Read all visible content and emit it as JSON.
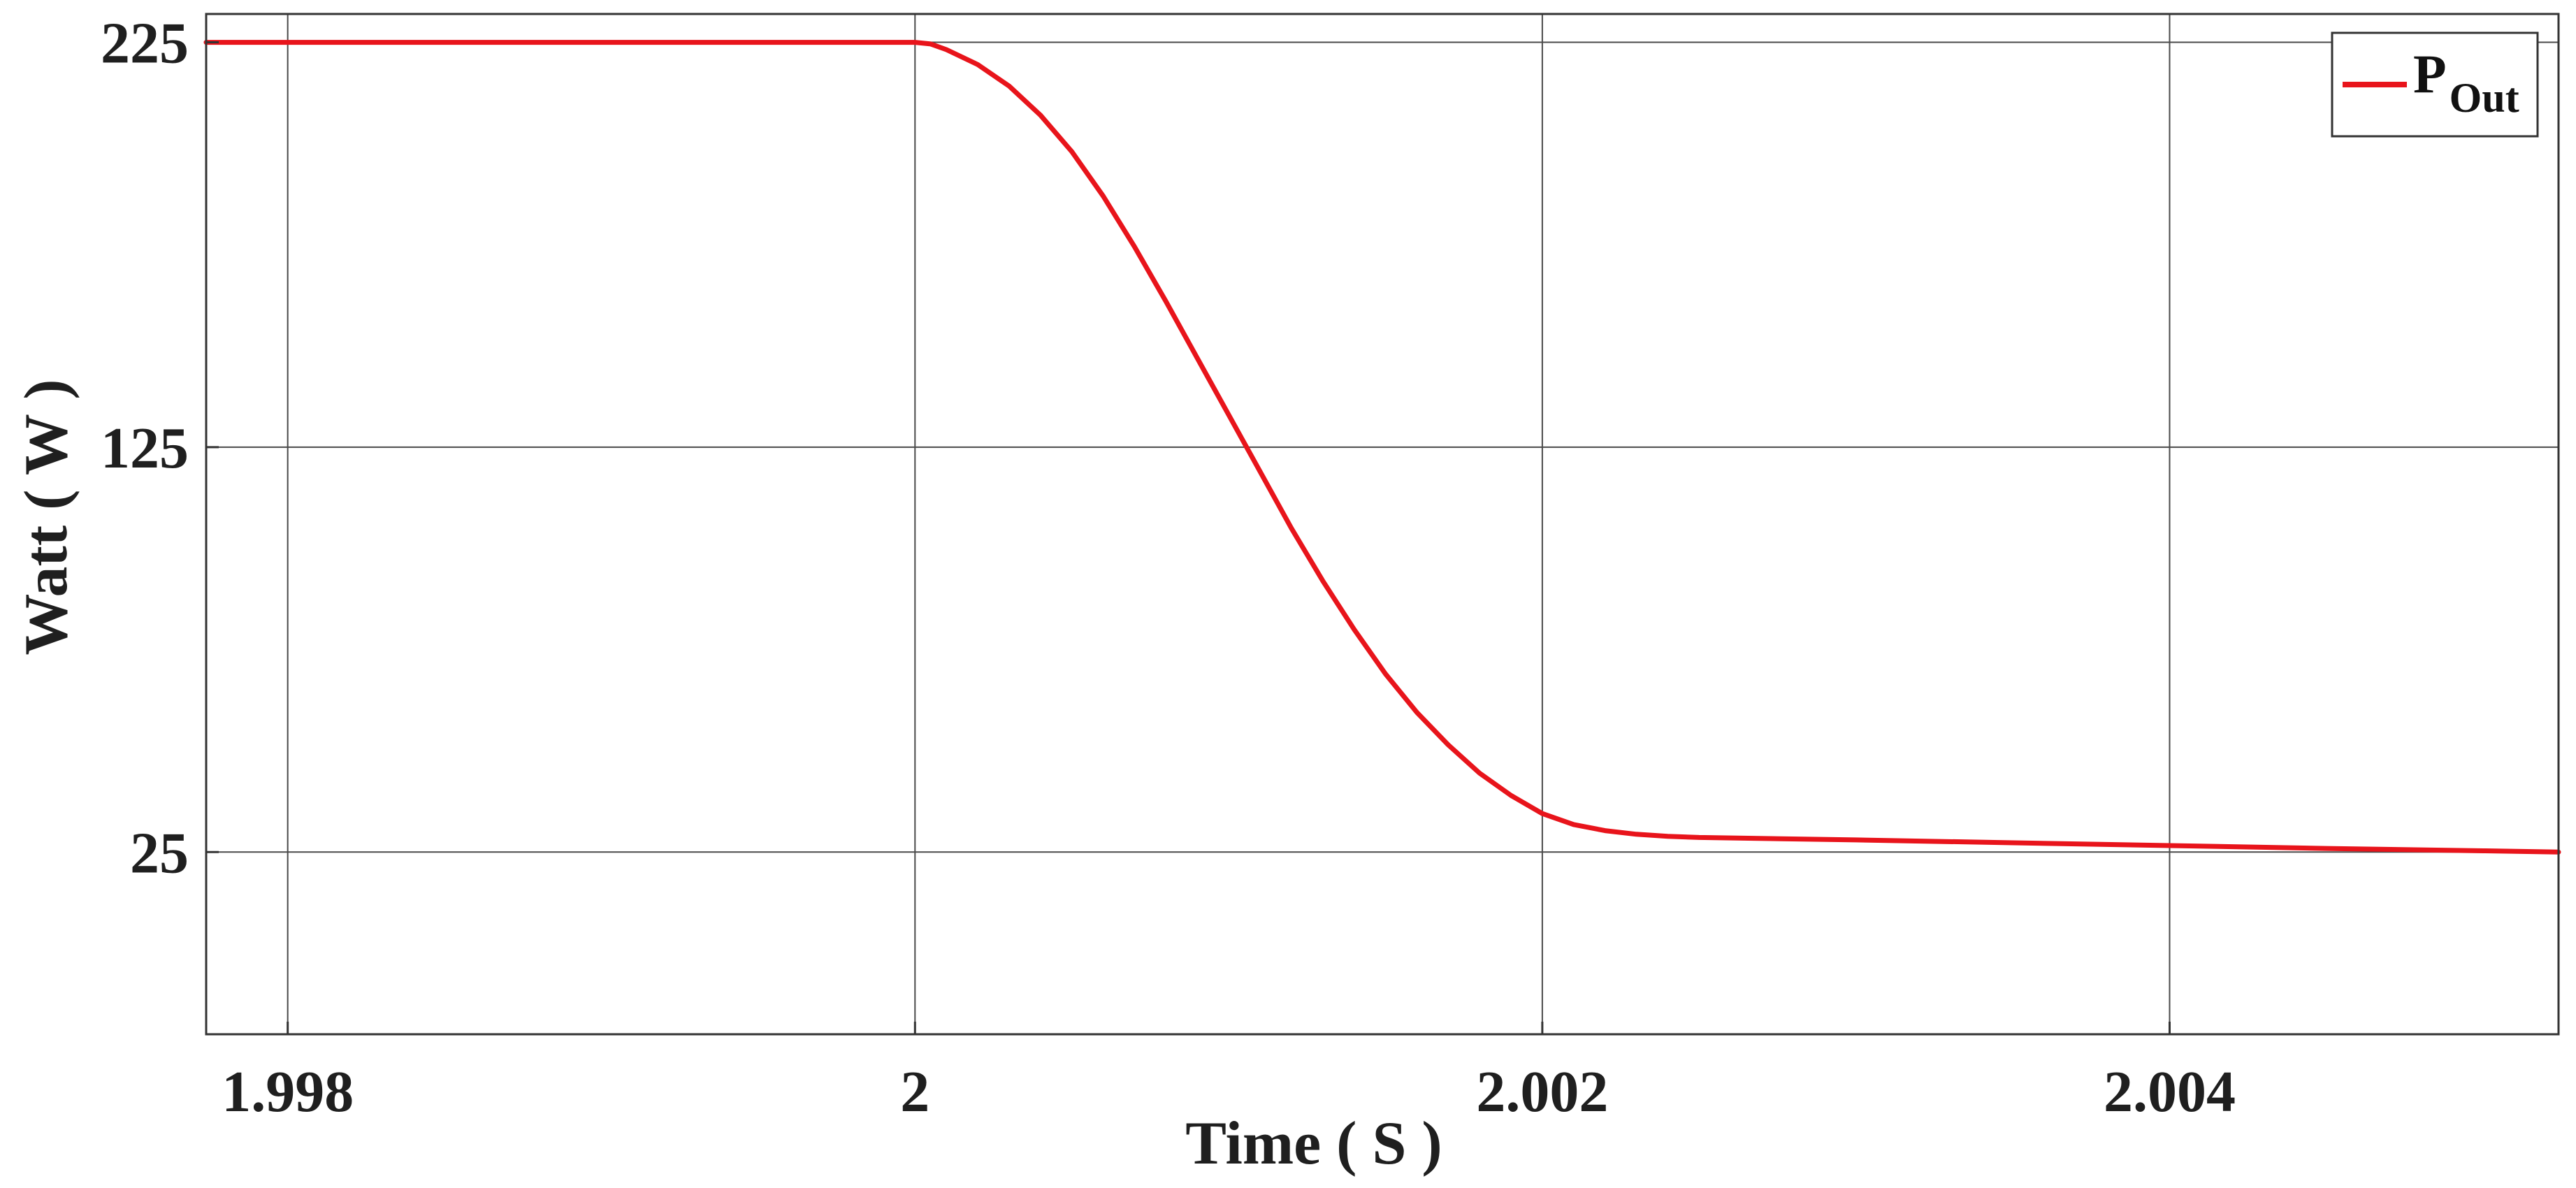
{
  "chart_data": {
    "type": "line",
    "title": "",
    "xlabel": "Time ( S )",
    "ylabel": "Watt ( W )",
    "xlim": [
      1.99774,
      2.00524
    ],
    "ylim": [
      -20,
      232
    ],
    "x_ticks": [
      1.998,
      2,
      2.002,
      2.004
    ],
    "x_tick_labels": [
      "1.998",
      "2",
      "2.002",
      "2.004"
    ],
    "y_ticks": [
      25,
      125,
      225
    ],
    "y_tick_labels": [
      "25",
      "125",
      "225"
    ],
    "grid": true,
    "legend_position": "top-right",
    "series": [
      {
        "name": "P",
        "name_subscript": "Out",
        "color": "#e8141b",
        "x": [
          1.99774,
          1.998,
          1.999,
          1.9998,
          2.0,
          2.00005,
          2.0001,
          2.0002,
          2.0003,
          2.0004,
          2.0005,
          2.0006,
          2.0007,
          2.0008,
          2.0009,
          2.001,
          2.0011,
          2.0012,
          2.0013,
          2.0014,
          2.0015,
          2.0016,
          2.0017,
          2.0018,
          2.0019,
          2.002,
          2.0021,
          2.0022,
          2.0023,
          2.0024,
          2.0025,
          2.003,
          2.0035,
          2.004,
          2.0045,
          2.005,
          2.00524
        ],
        "y": [
          225,
          225,
          225,
          225,
          225,
          224.6,
          223.2,
          219.5,
          214.2,
          207.0,
          198.0,
          187.0,
          174.5,
          161.0,
          147.0,
          133.0,
          119.0,
          105.0,
          92.0,
          80.0,
          69.0,
          59.5,
          51.5,
          44.5,
          39.0,
          34.5,
          31.8,
          30.3,
          29.4,
          28.9,
          28.6,
          28.0,
          27.3,
          26.6,
          25.9,
          25.3,
          25.0
        ]
      }
    ]
  }
}
